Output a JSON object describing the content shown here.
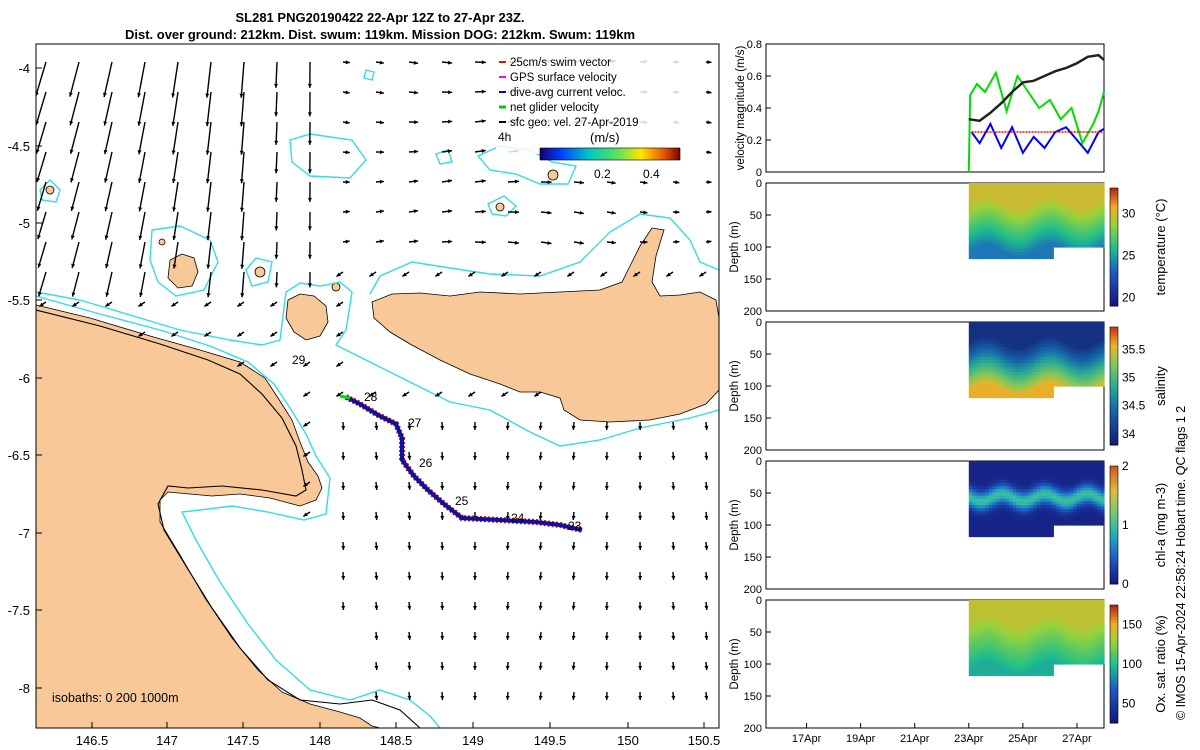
{
  "header": {
    "line1": "SL281 PNG20190422 22-Apr 12Z to 27-Apr 23Z.",
    "line2": "Dist. over ground: 212km. Dist. swum: 119km. Mission DOG: 212km. Swum: 119km"
  },
  "map": {
    "x_ticks": [
      "146.5",
      "147",
      "147.5",
      "148",
      "148.5",
      "149",
      "149.5",
      "150",
      "150.5"
    ],
    "y_ticks": [
      "-4",
      "-4.5",
      "-5",
      "-5.5",
      "-6",
      "-6.5",
      "-7",
      "-7.5",
      "-8"
    ],
    "isobaths_label": "isobaths: 0   200  1000m",
    "legend": [
      {
        "label": "25cm/s swim vector",
        "color": "#ff0000"
      },
      {
        "label": "GPS surface velocity",
        "color": "#ff00ff"
      },
      {
        "label": "dive-avg current veloc.",
        "color": "#0000ff"
      },
      {
        "label": "net glider velocity",
        "color": "#00cc00"
      },
      {
        "label": "sfc geo. vel. 27-Apr-2019",
        "color": "#000000"
      }
    ],
    "colorbar": {
      "unit": "(m/s)",
      "ticks": [
        "0.2",
        "0.4"
      ]
    },
    "speed_key": "4h",
    "day_labels": [
      "28",
      "27",
      "26",
      "25",
      "24",
      "23",
      "29"
    ],
    "colors": {
      "land": "#f8c899",
      "isobath_200": "#33dde0",
      "track": "#0b12a0",
      "swim": "#dd0000"
    }
  },
  "chart_data": [
    {
      "type": "line",
      "ylabel": "velocity magnitude (m/s)",
      "ylim": [
        0,
        0.8
      ],
      "y_ticks": [
        "0",
        "0.2",
        "0.4",
        "0.6",
        "0.8"
      ],
      "series": [
        {
          "name": "net glider velocity",
          "color": "#00dd00",
          "x": [
            23.0,
            23.05,
            23.3,
            23.6,
            24.0,
            24.4,
            24.8,
            25.2,
            25.6,
            26.0,
            26.4,
            26.8,
            27.2,
            27.6,
            27.8,
            28.0
          ],
          "values": [
            0.0,
            0.48,
            0.55,
            0.5,
            0.62,
            0.38,
            0.6,
            0.5,
            0.4,
            0.45,
            0.33,
            0.4,
            0.18,
            0.3,
            0.38,
            0.5
          ]
        },
        {
          "name": "dive-avg current veloc.",
          "color": "#0000ff",
          "x": [
            23.1,
            23.4,
            23.8,
            24.2,
            24.6,
            25.0,
            25.4,
            25.8,
            26.2,
            26.6,
            27.0,
            27.4,
            27.8,
            28.0
          ],
          "values": [
            0.25,
            0.18,
            0.3,
            0.15,
            0.28,
            0.12,
            0.22,
            0.15,
            0.25,
            0.28,
            0.2,
            0.12,
            0.25,
            0.27
          ]
        },
        {
          "name": "25cm/s swim vector",
          "color": "#ff0000",
          "x": [
            23.1,
            28.0
          ],
          "values": [
            0.25,
            0.25
          ]
        },
        {
          "name": "sfc geo. vel.",
          "color": "#222222",
          "x": [
            23.0,
            23.4,
            23.8,
            24.2,
            24.6,
            25.0,
            25.4,
            25.8,
            26.2,
            26.6,
            27.0,
            27.4,
            27.8,
            28.0
          ],
          "values": [
            0.33,
            0.32,
            0.37,
            0.43,
            0.5,
            0.56,
            0.57,
            0.6,
            0.63,
            0.65,
            0.68,
            0.72,
            0.73,
            0.7
          ]
        }
      ]
    },
    {
      "type": "heatmap",
      "ylabel": "Depth (m)",
      "colorbar_label": "temperature (°C)",
      "colorbar_ticks": [
        "20",
        "25",
        "30"
      ],
      "y_ticks": [
        "0",
        "50",
        "100",
        "150",
        "200"
      ],
      "ylim": [
        200,
        0
      ],
      "time_range": [
        23,
        28
      ],
      "surface_value": 30,
      "deep_value": 24
    },
    {
      "type": "heatmap",
      "ylabel": "Depth (m)",
      "colorbar_label": "salinity",
      "colorbar_ticks": [
        "34",
        "34.5",
        "35",
        "35.5"
      ],
      "y_ticks": [
        "0",
        "50",
        "100",
        "150",
        "200"
      ],
      "ylim": [
        200,
        0
      ],
      "time_range": [
        23,
        28
      ],
      "surface_value": 34.0,
      "deep_value": 35.6
    },
    {
      "type": "heatmap",
      "ylabel": "Depth (m)",
      "colorbar_label": "chl-a (mg m-3)",
      "colorbar_ticks": [
        "0",
        "1",
        "2"
      ],
      "y_ticks": [
        "0",
        "50",
        "100",
        "150",
        "200"
      ],
      "ylim": [
        200,
        0
      ],
      "time_range": [
        23,
        28
      ],
      "surface_value": 0.1,
      "deep_value": 0.9
    },
    {
      "type": "heatmap",
      "ylabel": "Depth (m)",
      "colorbar_label": "Ox. sat. ratio (%)",
      "colorbar_ticks": [
        "50",
        "100",
        "150"
      ],
      "y_ticks": [
        "0",
        "50",
        "100",
        "150",
        "200"
      ],
      "ylim": [
        200,
        0
      ],
      "time_range": [
        23,
        28
      ],
      "surface_value": 140,
      "deep_value": 95,
      "x_ticks": [
        "17Apr",
        "19Apr",
        "21Apr",
        "23Apr",
        "25Apr",
        "27Apr"
      ]
    }
  ],
  "footer": {
    "credit": "© IMOS 15-Apr-2024 22:58:24 Hobart time. QC flags 1  2"
  }
}
